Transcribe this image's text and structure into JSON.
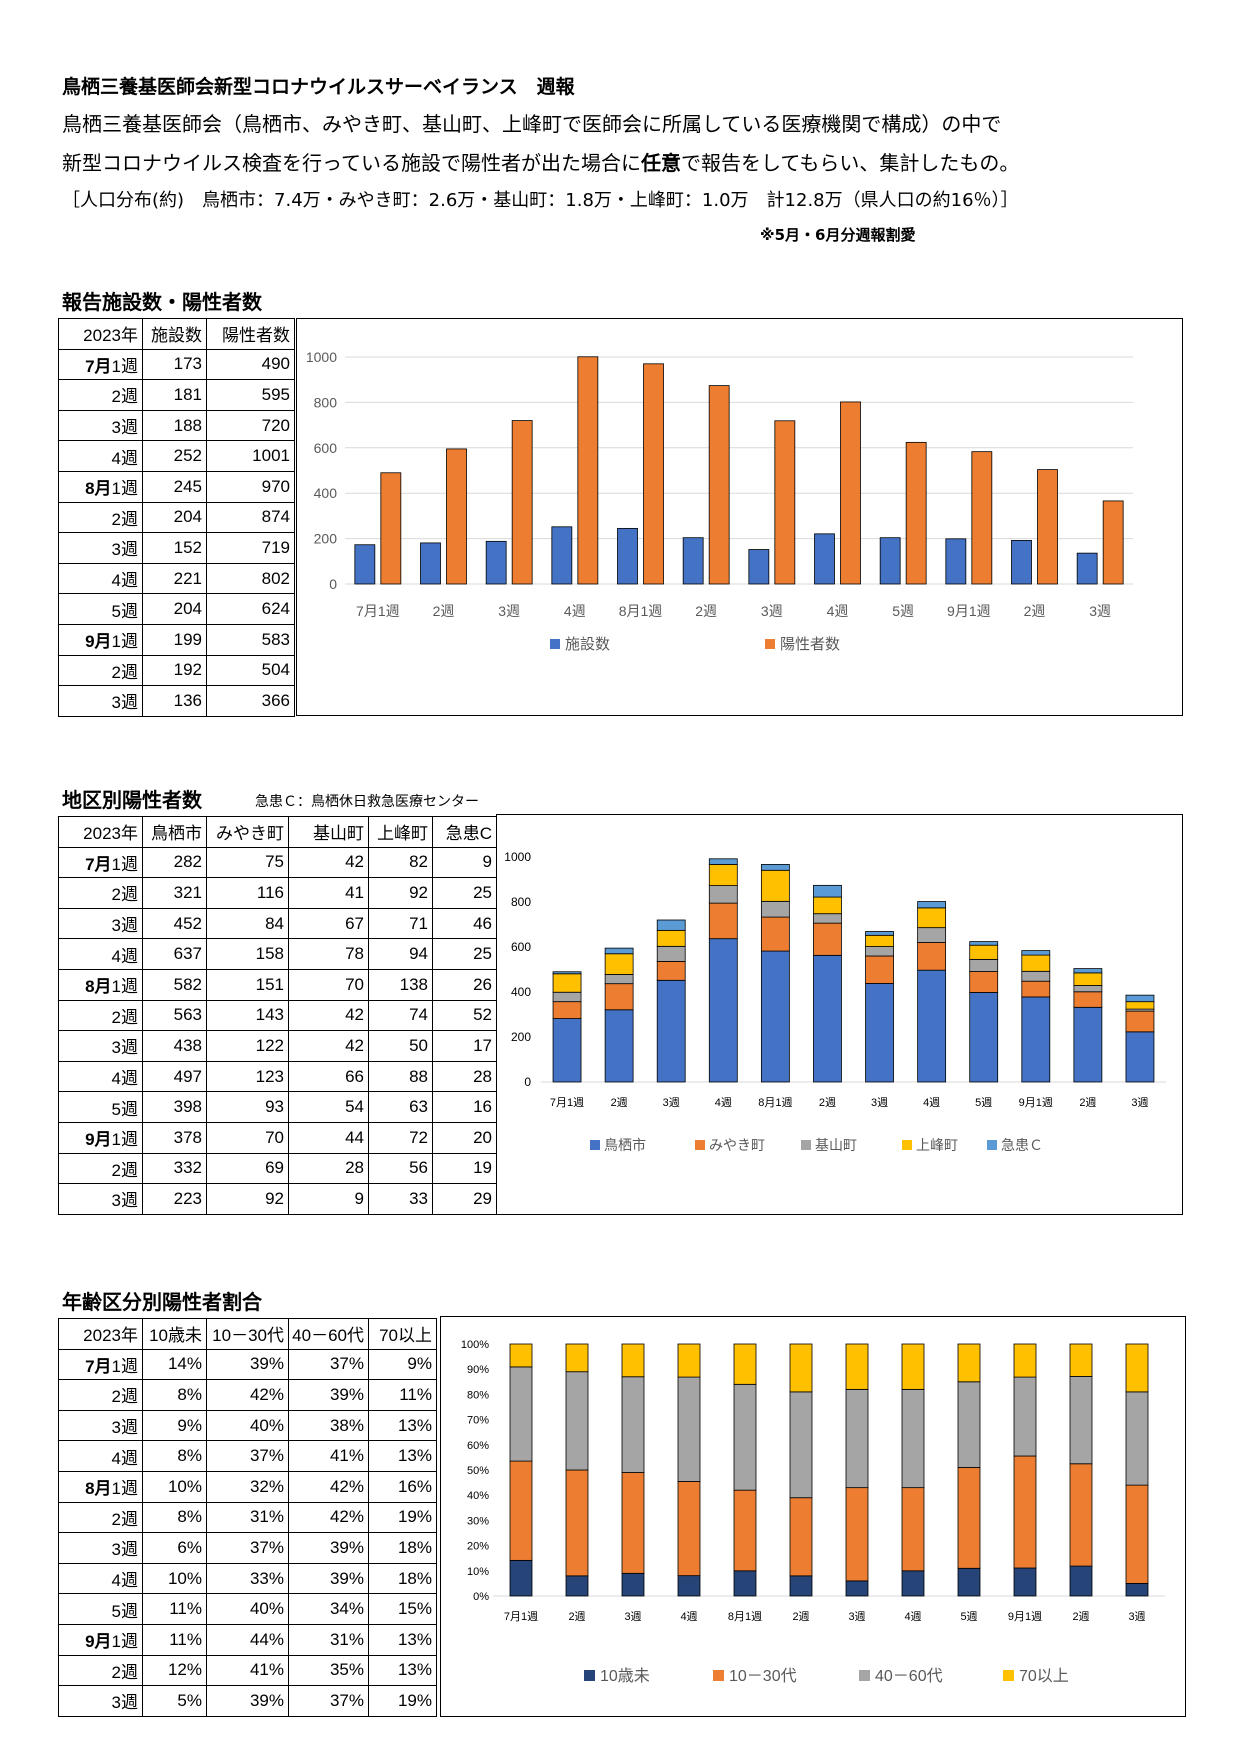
{
  "header": {
    "title": "鳥栖三養基医師会新型コロナウイルスサーベイランス　週報",
    "line1": "鳥栖三養基医師会（鳥栖市、みやき町、基山町、上峰町で医師会に所属している医療機関で構成）の中で",
    "line2_pre": "新型コロナウイルス検査を行っている施設で陽性者が出た場合に",
    "line2_bold": "任意",
    "line2_post": "で報告をしてもらい、集計したもの。",
    "population": "［人口分布(約)　鳥栖市：7.4万・みやき町：2.6万・基山町：1.8万・上峰町：1.0万　計12.8万（県人口の約16％）］",
    "note": "※5月・6月分週報割愛"
  },
  "colors": {
    "blue": "#4472C4",
    "orange": "#ED7D31",
    "gray": "#A5A5A5",
    "yellow": "#FFC000",
    "lightblue": "#5B9BD5",
    "navy": "#264478"
  },
  "weeks": [
    {
      "month": "7月",
      "week": "1週"
    },
    {
      "month": "",
      "week": "2週"
    },
    {
      "month": "",
      "week": "3週"
    },
    {
      "month": "",
      "week": "4週"
    },
    {
      "month": "8月",
      "week": "1週"
    },
    {
      "month": "",
      "week": "2週"
    },
    {
      "month": "",
      "week": "3週"
    },
    {
      "month": "",
      "week": "4週"
    },
    {
      "month": "",
      "week": "5週"
    },
    {
      "month": "9月",
      "week": "1週"
    },
    {
      "month": "",
      "week": "2週"
    },
    {
      "month": "",
      "week": "3週"
    }
  ],
  "table1": {
    "title": "報告施設数・陽性者数",
    "headers": [
      "2023年",
      "施設数",
      "陽性者数"
    ],
    "rows": [
      [
        173,
        490
      ],
      [
        181,
        595
      ],
      [
        188,
        720
      ],
      [
        252,
        1001
      ],
      [
        245,
        970
      ],
      [
        204,
        874
      ],
      [
        152,
        719
      ],
      [
        221,
        802
      ],
      [
        204,
        624
      ],
      [
        199,
        583
      ],
      [
        192,
        504
      ],
      [
        136,
        366
      ]
    ]
  },
  "table2": {
    "title": "地区別陽性者数",
    "note": "急患Ｃ：鳥栖休日救急医療センター",
    "headers": [
      "2023年",
      "鳥栖市",
      "みやき町",
      "基山町",
      "上峰町",
      "急患C"
    ],
    "rows": [
      [
        282,
        75,
        42,
        82,
        9
      ],
      [
        321,
        116,
        41,
        92,
        25
      ],
      [
        452,
        84,
        67,
        71,
        46
      ],
      [
        637,
        158,
        78,
        94,
        25
      ],
      [
        582,
        151,
        70,
        138,
        26
      ],
      [
        563,
        143,
        42,
        74,
        52
      ],
      [
        438,
        122,
        42,
        50,
        17
      ],
      [
        497,
        123,
        66,
        88,
        28
      ],
      [
        398,
        93,
        54,
        63,
        16
      ],
      [
        378,
        70,
        44,
        72,
        20
      ],
      [
        332,
        69,
        28,
        56,
        19
      ],
      [
        223,
        92,
        9,
        33,
        29
      ]
    ]
  },
  "table3": {
    "title": "年齢区分別陽性者割合",
    "headers": [
      "2023年",
      "10歳未",
      "10－30代",
      "40－60代",
      "70以上"
    ],
    "rows": [
      [
        "14%",
        "39%",
        "37%",
        "9%"
      ],
      [
        "8%",
        "42%",
        "39%",
        "11%"
      ],
      [
        "9%",
        "40%",
        "38%",
        "13%"
      ],
      [
        "8%",
        "37%",
        "41%",
        "13%"
      ],
      [
        "10%",
        "32%",
        "42%",
        "16%"
      ],
      [
        "8%",
        "31%",
        "42%",
        "19%"
      ],
      [
        "6%",
        "37%",
        "39%",
        "18%"
      ],
      [
        "10%",
        "33%",
        "39%",
        "18%"
      ],
      [
        "11%",
        "40%",
        "34%",
        "15%"
      ],
      [
        "11%",
        "44%",
        "31%",
        "13%"
      ],
      [
        "12%",
        "41%",
        "35%",
        "13%"
      ],
      [
        "5%",
        "39%",
        "37%",
        "19%"
      ]
    ]
  },
  "chart_data": [
    {
      "type": "bar",
      "categories": [
        "7月1週",
        "2週",
        "3週",
        "4週",
        "8月1週",
        "2週",
        "3週",
        "4週",
        "5週",
        "9月1週",
        "2週",
        "3週"
      ],
      "series": [
        {
          "name": "施設数",
          "values": [
            173,
            181,
            188,
            252,
            245,
            204,
            152,
            221,
            204,
            199,
            192,
            136
          ]
        },
        {
          "name": "陽性者数",
          "values": [
            490,
            595,
            720,
            1001,
            970,
            874,
            719,
            802,
            624,
            583,
            504,
            366
          ]
        }
      ],
      "yticks": [
        "0",
        "200",
        "400",
        "600",
        "800",
        "1000"
      ],
      "ylim": [
        0,
        1000
      ],
      "grid": true,
      "legend": "bottom"
    },
    {
      "type": "bar",
      "stacked": true,
      "categories": [
        "7月1週",
        "2週",
        "3週",
        "4週",
        "8月1週",
        "2週",
        "3週",
        "4週",
        "5週",
        "9月1週",
        "2週",
        "3週"
      ],
      "series": [
        {
          "name": "鳥栖市",
          "values": [
            282,
            321,
            452,
            637,
            582,
            563,
            438,
            497,
            398,
            378,
            332,
            223
          ]
        },
        {
          "name": "みやき町",
          "values": [
            75,
            116,
            84,
            158,
            151,
            143,
            122,
            123,
            93,
            70,
            69,
            92
          ]
        },
        {
          "name": "基山町",
          "values": [
            42,
            41,
            67,
            78,
            70,
            42,
            42,
            66,
            54,
            44,
            28,
            9
          ]
        },
        {
          "name": "上峰町",
          "values": [
            82,
            92,
            71,
            94,
            138,
            74,
            50,
            88,
            63,
            72,
            56,
            33
          ]
        },
        {
          "name": "急患Ｃ",
          "values": [
            9,
            25,
            46,
            25,
            26,
            52,
            17,
            28,
            16,
            20,
            19,
            29
          ]
        }
      ],
      "yticks": [
        "0",
        "200",
        "400",
        "600",
        "800",
        "1000"
      ],
      "ylim": [
        0,
        1000
      ],
      "grid": false,
      "legend": "bottom"
    },
    {
      "type": "bar",
      "stacked": true,
      "percent": true,
      "categories": [
        "7月1週",
        "2週",
        "3週",
        "4週",
        "8月1週",
        "2週",
        "3週",
        "4週",
        "5週",
        "9月1週",
        "2週",
        "3週"
      ],
      "series": [
        {
          "name": "10歳未",
          "values": [
            14,
            8,
            9,
            8,
            10,
            8,
            6,
            10,
            11,
            11,
            12,
            5
          ]
        },
        {
          "name": "10－30代",
          "values": [
            39,
            42,
            40,
            37,
            32,
            31,
            37,
            33,
            40,
            44,
            41,
            39
          ]
        },
        {
          "name": "40－60代",
          "values": [
            37,
            39,
            38,
            41,
            42,
            42,
            39,
            39,
            34,
            31,
            35,
            37
          ]
        },
        {
          "name": "70以上",
          "values": [
            9,
            11,
            13,
            13,
            16,
            19,
            18,
            18,
            15,
            13,
            13,
            19
          ]
        }
      ],
      "yticks": [
        "0%",
        "10%",
        "20%",
        "30%",
        "40%",
        "50%",
        "60%",
        "70%",
        "80%",
        "90%",
        "100%"
      ],
      "ylim": [
        0,
        100
      ],
      "grid": false,
      "legend": "bottom"
    }
  ]
}
